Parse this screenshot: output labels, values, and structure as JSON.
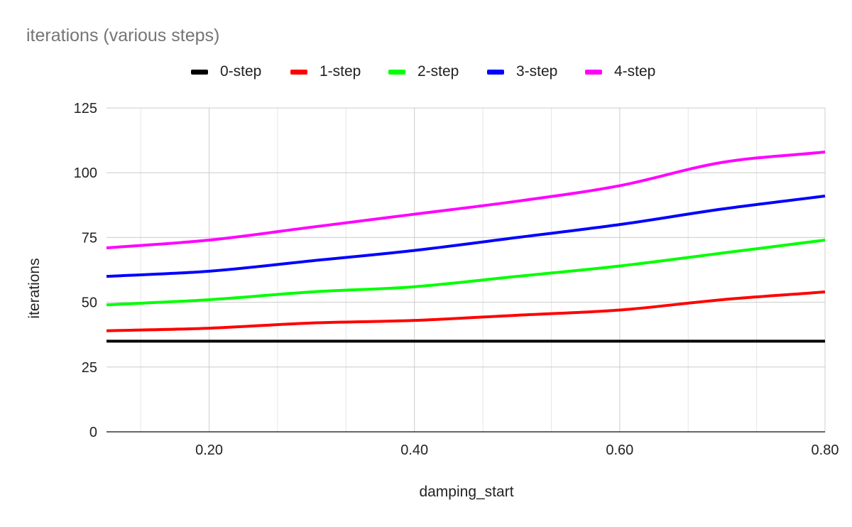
{
  "chart_data": {
    "type": "line",
    "title": "iterations (various steps)",
    "xlabel": "damping_start",
    "ylabel": "iterations",
    "x": [
      0.1,
      0.2,
      0.3,
      0.4,
      0.5,
      0.6,
      0.7,
      0.8
    ],
    "xlim": [
      0.1,
      0.8
    ],
    "ylim": [
      0,
      125
    ],
    "xticks": [
      "0.20",
      "0.40",
      "0.60",
      "0.80"
    ],
    "xtick_values": [
      0.2,
      0.4,
      0.6,
      0.8
    ],
    "yticks": [
      "0",
      "25",
      "50",
      "75",
      "100",
      "125"
    ],
    "ytick_values": [
      0,
      25,
      50,
      75,
      100,
      125
    ],
    "grid": true,
    "legend_position": "top",
    "series": [
      {
        "name": "0-step",
        "color": "#000000",
        "values": [
          35,
          35,
          35,
          35,
          35,
          35,
          35,
          35
        ]
      },
      {
        "name": "1-step",
        "color": "#ff0000",
        "values": [
          39,
          40,
          42,
          43,
          45,
          47,
          51,
          54
        ]
      },
      {
        "name": "2-step",
        "color": "#00ff00",
        "values": [
          49,
          51,
          54,
          56,
          60,
          64,
          69,
          74
        ]
      },
      {
        "name": "3-step",
        "color": "#0000ff",
        "values": [
          60,
          62,
          66,
          70,
          75,
          80,
          86,
          91
        ]
      },
      {
        "name": "4-step",
        "color": "#ff00ff",
        "values": [
          71,
          74,
          79,
          84,
          89,
          95,
          104,
          108
        ]
      }
    ]
  }
}
